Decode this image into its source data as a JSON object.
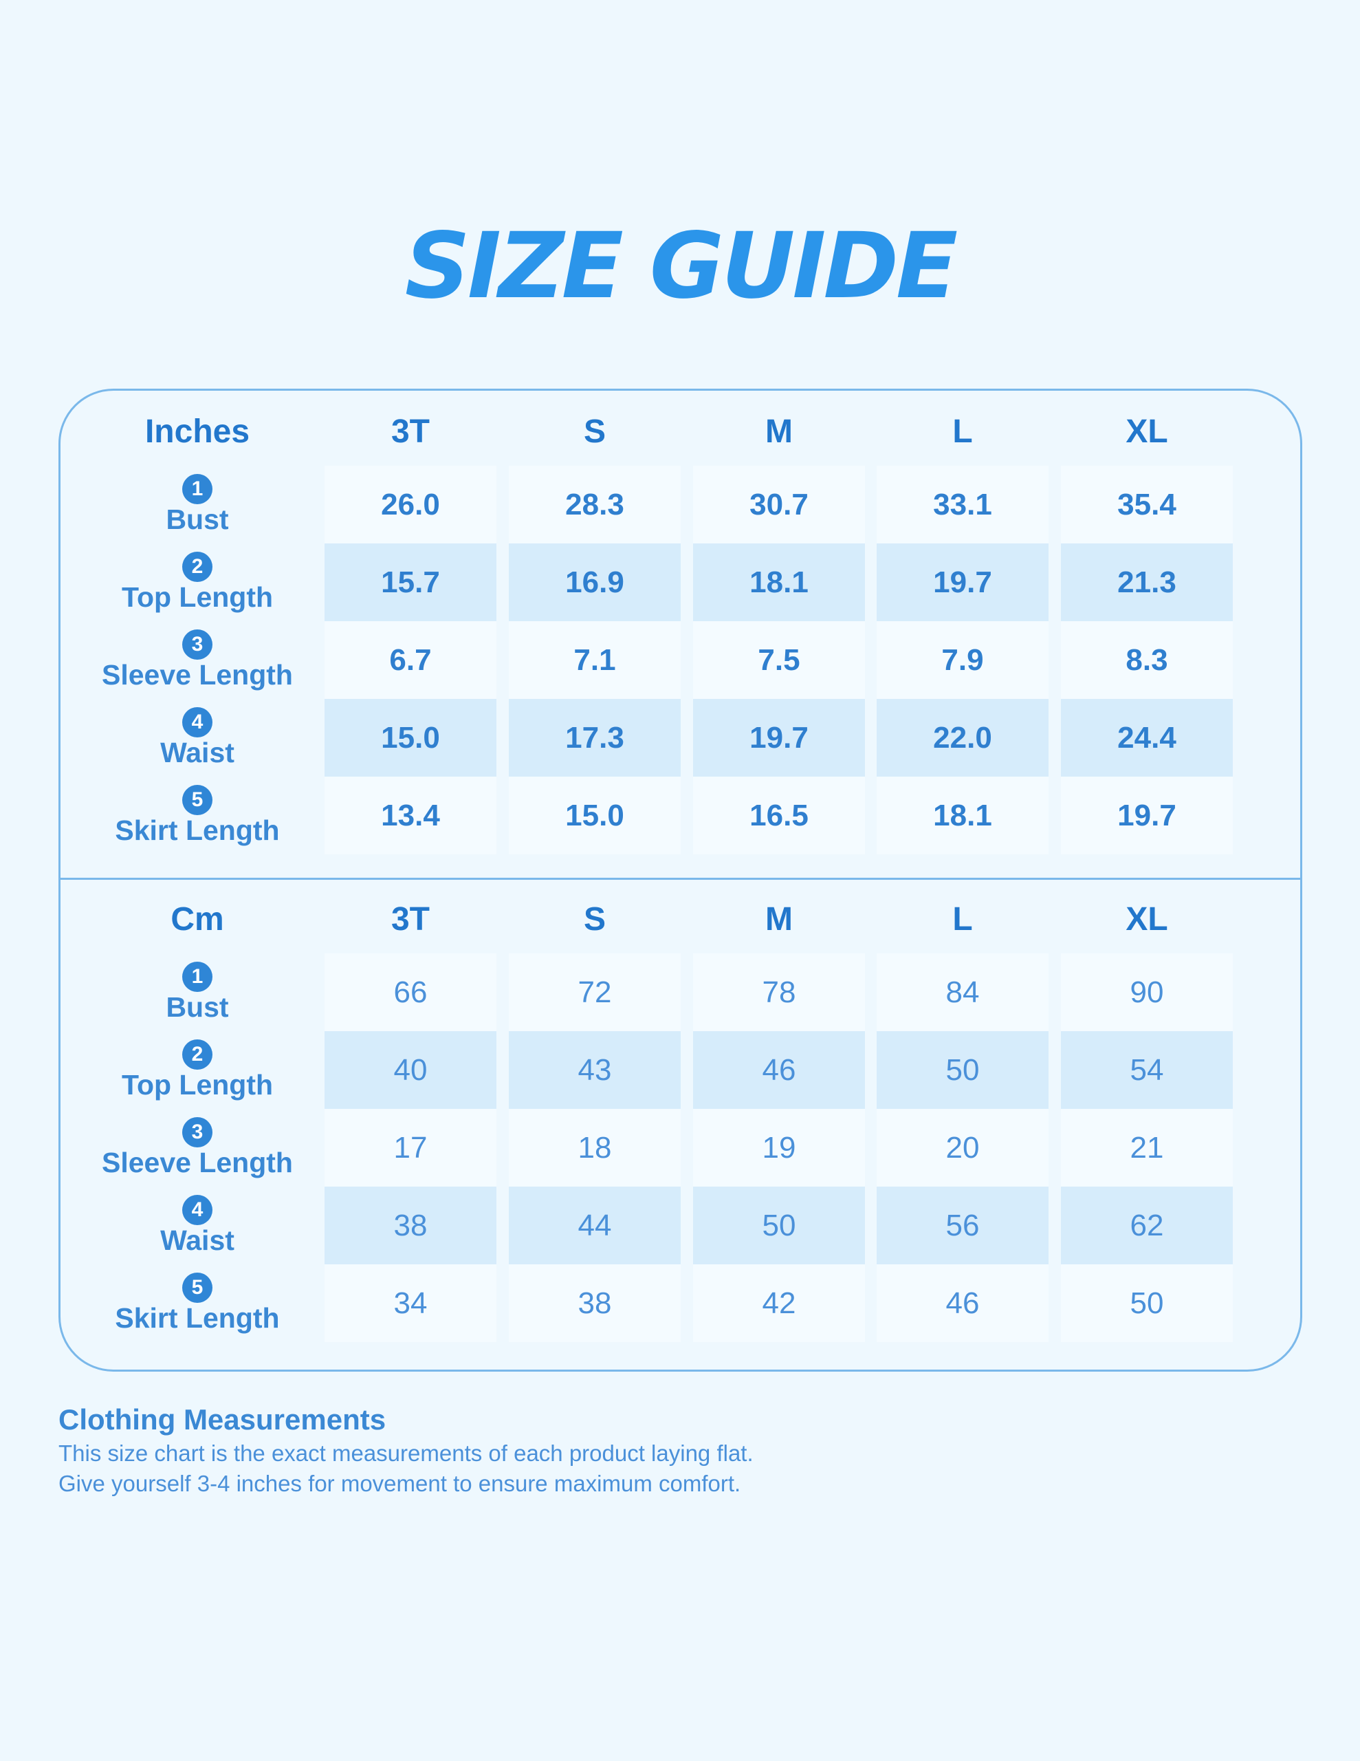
{
  "title": "SIZE GUIDE",
  "tables": [
    {
      "header": [
        "Inches",
        "3T",
        "S",
        "M",
        "L",
        "XL"
      ],
      "rows": [
        {
          "num": "1",
          "label": "Bust",
          "values": [
            "26.0",
            "28.3",
            "30.7",
            "33.1",
            "35.4"
          ]
        },
        {
          "num": "2",
          "label": "Top Length",
          "values": [
            "15.7",
            "16.9",
            "18.1",
            "19.7",
            "21.3"
          ]
        },
        {
          "num": "3",
          "label": "Sleeve Length",
          "values": [
            "6.7",
            "7.1",
            "7.5",
            "7.9",
            "8.3"
          ]
        },
        {
          "num": "4",
          "label": "Waist",
          "values": [
            "15.0",
            "17.3",
            "19.7",
            "22.0",
            "24.4"
          ]
        },
        {
          "num": "5",
          "label": "Skirt Length",
          "values": [
            "13.4",
            "15.0",
            "16.5",
            "18.1",
            "19.7"
          ]
        }
      ]
    },
    {
      "header": [
        "Cm",
        "3T",
        "S",
        "M",
        "L",
        "XL"
      ],
      "rows": [
        {
          "num": "1",
          "label": "Bust",
          "values": [
            "66",
            "72",
            "78",
            "84",
            "90"
          ]
        },
        {
          "num": "2",
          "label": "Top Length",
          "values": [
            "40",
            "43",
            "46",
            "50",
            "54"
          ]
        },
        {
          "num": "3",
          "label": "Sleeve Length",
          "values": [
            "17",
            "18",
            "19",
            "20",
            "21"
          ]
        },
        {
          "num": "4",
          "label": "Waist",
          "values": [
            "38",
            "44",
            "50",
            "56",
            "62"
          ]
        },
        {
          "num": "5",
          "label": "Skirt Length",
          "values": [
            "34",
            "38",
            "42",
            "46",
            "50"
          ]
        }
      ]
    }
  ],
  "notes": {
    "heading": "Clothing Measurements",
    "lines": [
      "This size chart is the exact measurements of each product laying flat.",
      "Give yourself 3-4 inches for movement to ensure maximum comfort."
    ]
  }
}
